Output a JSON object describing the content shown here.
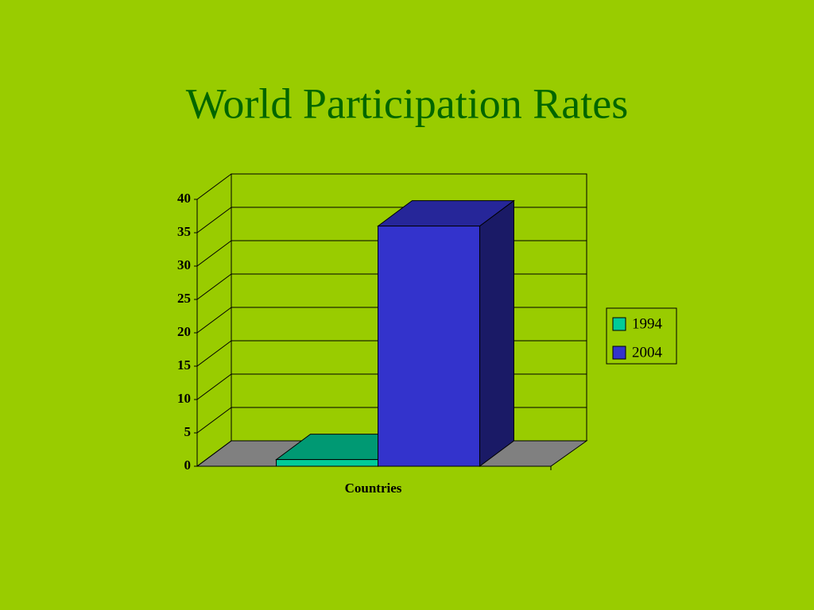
{
  "chart_data": {
    "type": "bar3d",
    "title": "World Participation Rates",
    "categories": [
      "Countries"
    ],
    "series": [
      {
        "name": "1994",
        "color": "#00cc99",
        "values": [
          1
        ]
      },
      {
        "name": "2004",
        "color": "#3333cc",
        "values": [
          36
        ]
      }
    ],
    "ylim": [
      0,
      40
    ],
    "yticks": [
      0,
      5,
      10,
      15,
      20,
      25,
      30,
      35,
      40
    ],
    "grid": true,
    "legend": "right"
  }
}
